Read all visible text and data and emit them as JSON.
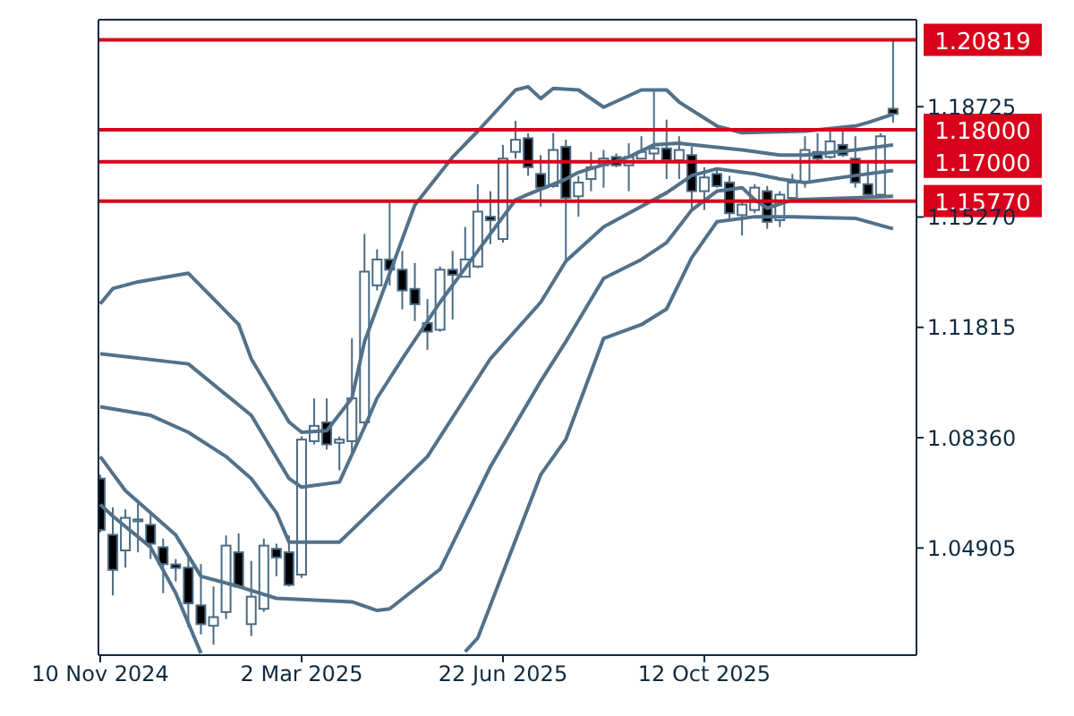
{
  "chart_data": {
    "type": "candlestick",
    "color": "#4a6b84",
    "x": [
      "2024-11-10",
      "2024-11-17",
      "2024-11-24",
      "2024-12-01",
      "2024-12-08",
      "2024-12-15",
      "2024-12-22",
      "2024-12-29",
      "2025-01-05",
      "2025-01-12",
      "2025-01-19",
      "2025-01-26",
      "2025-02-02",
      "2025-02-09",
      "2025-02-16",
      "2025-02-23",
      "2025-03-02",
      "2025-03-09",
      "2025-03-16",
      "2025-03-23",
      "2025-03-30",
      "2025-04-06",
      "2025-04-13",
      "2025-04-20",
      "2025-04-27",
      "2025-05-04",
      "2025-05-11",
      "2025-05-18",
      "2025-05-25",
      "2025-06-01",
      "2025-06-08",
      "2025-06-15",
      "2025-06-22",
      "2025-06-29",
      "2025-07-06",
      "2025-07-13",
      "2025-07-20",
      "2025-07-27",
      "2025-08-03",
      "2025-08-10",
      "2025-08-17",
      "2025-08-24",
      "2025-08-31",
      "2025-09-07",
      "2025-09-14",
      "2025-09-21",
      "2025-09-28",
      "2025-10-05",
      "2025-10-12",
      "2025-10-19",
      "2025-10-26",
      "2025-11-02",
      "2025-11-09",
      "2025-11-16",
      "2025-11-23",
      "2025-11-30",
      "2025-12-07",
      "2025-12-14",
      "2025-12-21",
      "2025-12-28",
      "2026-01-04",
      "2026-01-11",
      "2026-01-18",
      "2026-01-25"
    ],
    "ohlc": [
      [
        1.0708,
        1.072,
        1.054,
        1.0547
      ],
      [
        1.0532,
        1.0618,
        1.0342,
        1.0422
      ],
      [
        1.0483,
        1.0611,
        1.0429,
        1.0585
      ],
      [
        1.0574,
        1.0638,
        1.0477,
        1.058
      ],
      [
        1.0563,
        1.0606,
        1.0456,
        1.0504
      ],
      [
        1.0493,
        1.052,
        1.0349,
        1.044
      ],
      [
        1.0439,
        1.0456,
        1.0386,
        1.0428
      ],
      [
        1.0429,
        1.0466,
        1.0242,
        1.0317
      ],
      [
        1.0311,
        1.044,
        1.022,
        1.0252
      ],
      [
        1.0247,
        1.037,
        1.0188,
        1.0274
      ],
      [
        1.029,
        1.053,
        1.0268,
        1.0498
      ],
      [
        1.0477,
        1.0536,
        1.0365,
        1.037
      ],
      [
        1.0252,
        1.045,
        1.0215,
        1.0338
      ],
      [
        1.03,
        1.052,
        1.029,
        1.0498
      ],
      [
        1.0488,
        1.0504,
        1.0402,
        1.0461
      ],
      [
        1.0477,
        1.053,
        1.037,
        1.0375
      ],
      [
        1.0407,
        1.084,
        1.0397,
        1.083
      ],
      [
        1.0825,
        1.0959,
        1.0815,
        1.0873
      ],
      [
        1.0884,
        1.0959,
        1.0799,
        1.0815
      ],
      [
        1.082,
        1.084,
        1.0734,
        1.083
      ],
      [
        1.0825,
        1.1147,
        1.0777,
        1.0959
      ],
      [
        1.0884,
        1.1474,
        1.0868,
        1.1356
      ],
      [
        1.1313,
        1.1426,
        1.1297,
        1.1394
      ],
      [
        1.1394,
        1.1576,
        1.1313,
        1.1362
      ],
      [
        1.1362,
        1.1421,
        1.1238,
        1.1297
      ],
      [
        1.1302,
        1.1383,
        1.1201,
        1.1254
      ],
      [
        1.1195,
        1.127,
        1.1111,
        1.1168
      ],
      [
        1.1174,
        1.1372,
        1.1168,
        1.1362
      ],
      [
        1.1362,
        1.1421,
        1.1206,
        1.1346
      ],
      [
        1.134,
        1.1496,
        1.134,
        1.1394
      ],
      [
        1.1372,
        1.163,
        1.1367,
        1.1544
      ],
      [
        1.1528,
        1.1608,
        1.1442,
        1.1517
      ],
      [
        1.1458,
        1.1753,
        1.1447,
        1.171
      ],
      [
        1.1731,
        1.1828,
        1.171,
        1.1769
      ],
      [
        1.1774,
        1.179,
        1.1656,
        1.1683
      ],
      [
        1.1662,
        1.1721,
        1.156,
        1.1619
      ],
      [
        1.1624,
        1.179,
        1.1619,
        1.1737
      ],
      [
        1.1747,
        1.1769,
        1.1388,
        1.1587
      ],
      [
        1.1592,
        1.1656,
        1.1528,
        1.1635
      ],
      [
        1.1646,
        1.1731,
        1.1608,
        1.1683
      ],
      [
        1.1689,
        1.1737,
        1.1619,
        1.171
      ],
      [
        1.1715,
        1.1726,
        1.1683,
        1.1689
      ],
      [
        1.1689,
        1.1758,
        1.1608,
        1.1715
      ],
      [
        1.171,
        1.178,
        1.171,
        1.1731
      ],
      [
        1.1726,
        1.1924,
        1.1699,
        1.1742
      ],
      [
        1.1742,
        1.1832,
        1.1646,
        1.1705
      ],
      [
        1.1705,
        1.178,
        1.1646,
        1.1737
      ],
      [
        1.1721,
        1.1747,
        1.1549,
        1.1608
      ],
      [
        1.1608,
        1.1683,
        1.1549,
        1.1651
      ],
      [
        1.1662,
        1.1678,
        1.1619,
        1.1624
      ],
      [
        1.1635,
        1.1656,
        1.1523,
        1.1539
      ],
      [
        1.1533,
        1.1582,
        1.1469,
        1.1566
      ],
      [
        1.1549,
        1.163,
        1.1539,
        1.1619
      ],
      [
        1.1608,
        1.1624,
        1.149,
        1.1512
      ],
      [
        1.1517,
        1.1608,
        1.1496,
        1.1597
      ],
      [
        1.1587,
        1.1662,
        1.1582,
        1.1635
      ],
      [
        1.1635,
        1.178,
        1.1619,
        1.1737
      ],
      [
        1.1731,
        1.179,
        1.1705,
        1.171
      ],
      [
        1.1715,
        1.1806,
        1.171,
        1.1764
      ],
      [
        1.1753,
        1.1796,
        1.1715,
        1.1721
      ],
      [
        1.171,
        1.178,
        1.1619,
        1.1635
      ],
      [
        1.163,
        1.1694,
        1.1592,
        1.1597
      ],
      [
        1.1597,
        1.179,
        1.1592,
        1.178
      ],
      [
        1.1866,
        1.20819,
        1.1823,
        1.185
      ]
    ],
    "series": [
      {
        "type": "line",
        "color": "#52718a",
        "x": [
          "2024-11-10",
          "2024-11-17",
          "2024-12-01",
          "2024-12-29",
          "2025-01-12",
          "2025-01-26",
          "2025-02-02",
          "2025-02-23",
          "2025-03-02",
          "2025-03-16",
          "2025-03-30",
          "2025-04-06",
          "2025-05-04",
          "2025-05-25",
          "2025-06-08",
          "2025-06-29",
          "2025-07-06",
          "2025-07-13",
          "2025-07-20",
          "2025-08-03",
          "2025-08-17",
          "2025-09-07",
          "2025-09-21",
          "2025-09-28",
          "2025-10-19",
          "2025-11-02",
          "2025-12-07",
          "2026-01-04",
          "2026-01-11",
          "2026-01-25"
        ],
        "values": [
          1.1255,
          1.1303,
          1.1324,
          1.1351,
          1.1271,
          1.119,
          1.1083,
          1.0885,
          1.0853,
          1.0858,
          1.096,
          1.1137,
          1.1565,
          1.1715,
          1.1796,
          1.1925,
          1.1935,
          1.1898,
          1.193,
          1.1925,
          1.1871,
          1.1925,
          1.1925,
          1.1887,
          1.1812,
          1.1791,
          1.1796,
          1.1812,
          1.1823,
          1.1849
        ]
      },
      {
        "type": "line",
        "color": "#52718a",
        "x": [
          "2024-11-10",
          "2024-12-29",
          "2025-02-02",
          "2025-02-23",
          "2025-03-02",
          "2025-03-23",
          "2025-04-06",
          "2025-04-13",
          "2025-04-27",
          "2025-05-18",
          "2025-06-08",
          "2025-06-29",
          "2025-07-06",
          "2025-07-27",
          "2025-08-03",
          "2025-08-31",
          "2025-09-14",
          "2025-09-28",
          "2025-11-02",
          "2025-11-23",
          "2025-12-07",
          "2026-01-04",
          "2026-01-25"
        ],
        "values": [
          1.1099,
          1.1067,
          1.0906,
          1.0708,
          1.0681,
          1.0697,
          1.0869,
          1.096,
          1.1083,
          1.126,
          1.1421,
          1.1581,
          1.1598,
          1.1646,
          1.1667,
          1.1715,
          1.1753,
          1.1758,
          1.1737,
          1.1721,
          1.1721,
          1.1737,
          1.1753
        ]
      },
      {
        "type": "line",
        "color": "#52718a",
        "x": [
          "2024-11-10",
          "2024-12-08",
          "2024-12-29",
          "2025-01-19",
          "2025-02-02",
          "2025-02-16",
          "2025-02-23",
          "2025-03-23",
          "2025-04-06",
          "2025-05-11",
          "2025-06-15",
          "2025-07-13",
          "2025-07-27",
          "2025-08-17",
          "2025-08-31",
          "2025-09-21",
          "2025-10-05",
          "2025-10-19",
          "2025-11-09",
          "2025-11-23",
          "2025-12-07",
          "2026-01-04",
          "2026-01-25"
        ],
        "values": [
          1.0933,
          1.0906,
          1.0853,
          1.0777,
          1.0708,
          1.0601,
          1.0509,
          1.0509,
          1.0585,
          1.0777,
          1.1083,
          1.126,
          1.1389,
          1.1496,
          1.1539,
          1.1603,
          1.1657,
          1.1678,
          1.1662,
          1.1646,
          1.1635,
          1.1657,
          1.1673
        ]
      },
      {
        "type": "line",
        "color": "#52718a",
        "x": [
          "2024-11-10",
          "2024-11-24",
          "2024-12-22",
          "2025-01-05",
          "2025-01-26",
          "2025-02-16",
          "2025-03-30",
          "2025-04-13",
          "2025-04-20",
          "2025-05-18",
          "2025-06-15",
          "2025-07-13",
          "2025-07-27",
          "2025-08-17",
          "2025-09-07",
          "2025-09-21",
          "2025-10-05",
          "2025-10-19",
          "2025-11-02",
          "2025-11-09",
          "2025-11-16",
          "2025-11-30",
          "2026-01-04",
          "2026-01-25"
        ],
        "values": [
          1.0777,
          1.067,
          1.0531,
          1.0402,
          1.037,
          1.0333,
          1.0322,
          1.0295,
          1.03,
          1.0424,
          1.0745,
          1.1013,
          1.1137,
          1.1335,
          1.1394,
          1.1447,
          1.1549,
          1.1608,
          1.1619,
          1.1581,
          1.1555,
          1.1581,
          1.1587,
          1.1592
        ]
      },
      {
        "type": "line",
        "color": "#52718a",
        "x": [
          "2024-11-10",
          "2024-11-17",
          "2024-12-08",
          "2024-12-22",
          "2025-01-05",
          "2025-03-16",
          "2025-06-01",
          "2025-06-08",
          "2025-07-13",
          "2025-07-27",
          "2025-08-17",
          "2025-09-07",
          "2025-09-21",
          "2025-10-05",
          "2025-10-19",
          "2025-11-09",
          "2025-11-30",
          "2026-01-04",
          "2026-01-25"
        ],
        "values": [
          1.0627,
          1.059,
          1.0493,
          1.0349,
          1.0161,
          null,
          1.0166,
          1.0209,
          1.072,
          1.0831,
          1.1147,
          1.119,
          1.1239,
          1.14,
          1.1512,
          1.1528,
          1.1528,
          1.1523,
          1.149
        ]
      }
    ],
    "xlim": [
      "2024-11-09",
      "2026-02-07"
    ],
    "xticks": [
      {
        "value": "2024-11-10",
        "label": "10 Nov 2024"
      },
      {
        "value": "2025-03-02",
        "label": "2 Mar 2025"
      },
      {
        "value": "2025-06-22",
        "label": "22 Jun 2025"
      },
      {
        "value": "2025-10-12",
        "label": "12 Oct 2025"
      }
    ],
    "ylim": [
      1.0155,
      1.2145
    ],
    "yticks": [
      1.04905,
      {
        "value": 1.0836,
        "label": "1.08360"
      },
      1.11815,
      {
        "value": 1.1527,
        "label": "1.15270"
      },
      1.18725
    ],
    "ref_lines": [
      {
        "axis": "y",
        "value": 1.20819,
        "label": "1.20819",
        "color": "#d9001b"
      },
      {
        "axis": "y",
        "value": 1.18,
        "label": "1.18000",
        "color": "#d9001b"
      },
      {
        "axis": "y",
        "value": 1.17,
        "label": "1.17000",
        "color": "#d9001b"
      },
      {
        "axis": "y",
        "value": 1.1577,
        "label": "1.15770",
        "color": "#d9001b"
      }
    ]
  }
}
